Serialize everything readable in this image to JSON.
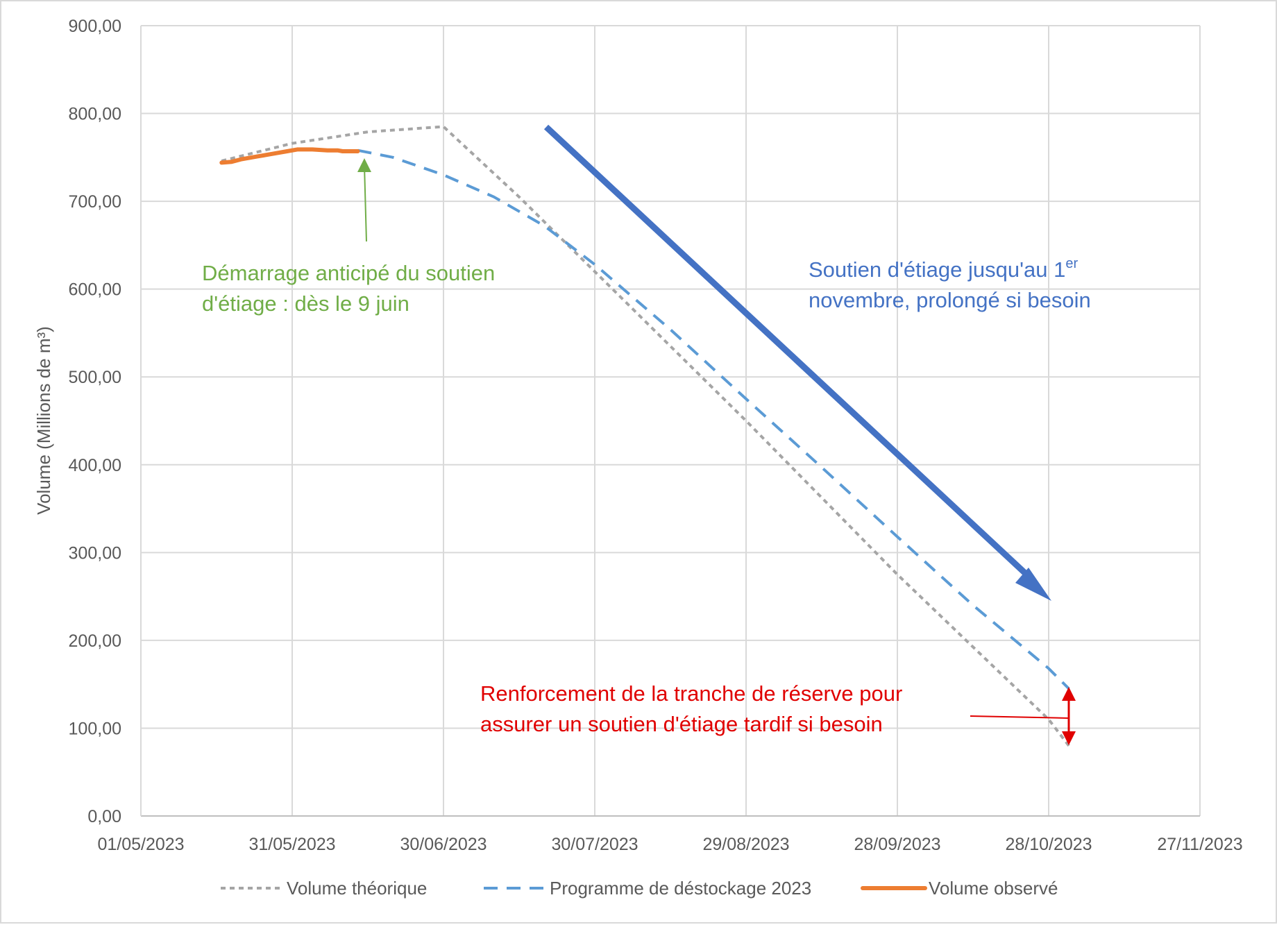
{
  "chart_data": {
    "type": "line",
    "xlabel": "",
    "ylabel": "Volume (Millions de m³)",
    "xlim": [
      "2023-05-01",
      "2023-11-27"
    ],
    "ylim": [
      0,
      900
    ],
    "x_ticks": [
      "01/05/2023",
      "31/05/2023",
      "30/06/2023",
      "30/07/2023",
      "29/08/2023",
      "28/09/2023",
      "28/10/2023",
      "27/11/2023"
    ],
    "y_ticks": [
      "0,00",
      "100,00",
      "200,00",
      "300,00",
      "400,00",
      "500,00",
      "600,00",
      "700,00",
      "800,00",
      "900,00"
    ],
    "grid": true,
    "legend_position": "bottom",
    "series": [
      {
        "name": "Volume théorique",
        "color": "#A5A5A5",
        "style": "dotted",
        "points": [
          [
            "2023-05-17",
            746
          ],
          [
            "2023-05-31",
            766
          ],
          [
            "2023-06-15",
            779
          ],
          [
            "2023-06-30",
            785
          ],
          [
            "2023-07-15",
            705
          ],
          [
            "2023-07-30",
            620
          ],
          [
            "2023-08-29",
            450
          ],
          [
            "2023-09-28",
            275
          ],
          [
            "2023-10-28",
            110
          ],
          [
            "2023-11-01",
            80
          ]
        ]
      },
      {
        "name": "Programme de déstockage 2023",
        "color": "#5B9BD5",
        "style": "dashed",
        "points": [
          [
            "2023-06-13",
            758
          ],
          [
            "2023-06-20",
            750
          ],
          [
            "2023-06-30",
            730
          ],
          [
            "2023-07-10",
            705
          ],
          [
            "2023-07-20",
            672
          ],
          [
            "2023-07-30",
            628
          ],
          [
            "2023-08-14",
            554
          ],
          [
            "2023-08-29",
            475
          ],
          [
            "2023-09-13",
            397
          ],
          [
            "2023-09-28",
            318
          ],
          [
            "2023-10-13",
            240
          ],
          [
            "2023-10-28",
            168
          ],
          [
            "2023-11-01",
            145
          ]
        ]
      },
      {
        "name": "Volume observé",
        "color": "#ED7D31",
        "style": "solid",
        "points": [
          [
            "2023-05-17",
            744
          ],
          [
            "2023-05-19",
            745
          ],
          [
            "2023-05-21",
            748
          ],
          [
            "2023-05-24",
            751
          ],
          [
            "2023-05-27",
            754
          ],
          [
            "2023-05-30",
            757
          ],
          [
            "2023-06-01",
            759
          ],
          [
            "2023-06-04",
            759
          ],
          [
            "2023-06-07",
            758
          ],
          [
            "2023-06-09",
            758
          ],
          [
            "2023-06-10",
            757
          ],
          [
            "2023-06-13",
            757
          ]
        ]
      }
    ],
    "annotations": [
      {
        "color": "#70AD47",
        "lines": [
          "Démarrage anticipé du soutien",
          "d'étiage : dès le 9 juin"
        ]
      },
      {
        "color": "#4472C4",
        "line1": "Soutien d'étiage jusqu'au 1",
        "line1_sup": "er",
        "line2": "novembre, prolongé si besoin"
      },
      {
        "color": "#E00000",
        "lines": [
          "Renforcement de la tranche de réserve pour",
          "assurer un soutien d'étiage tardif si besoin"
        ]
      }
    ]
  }
}
